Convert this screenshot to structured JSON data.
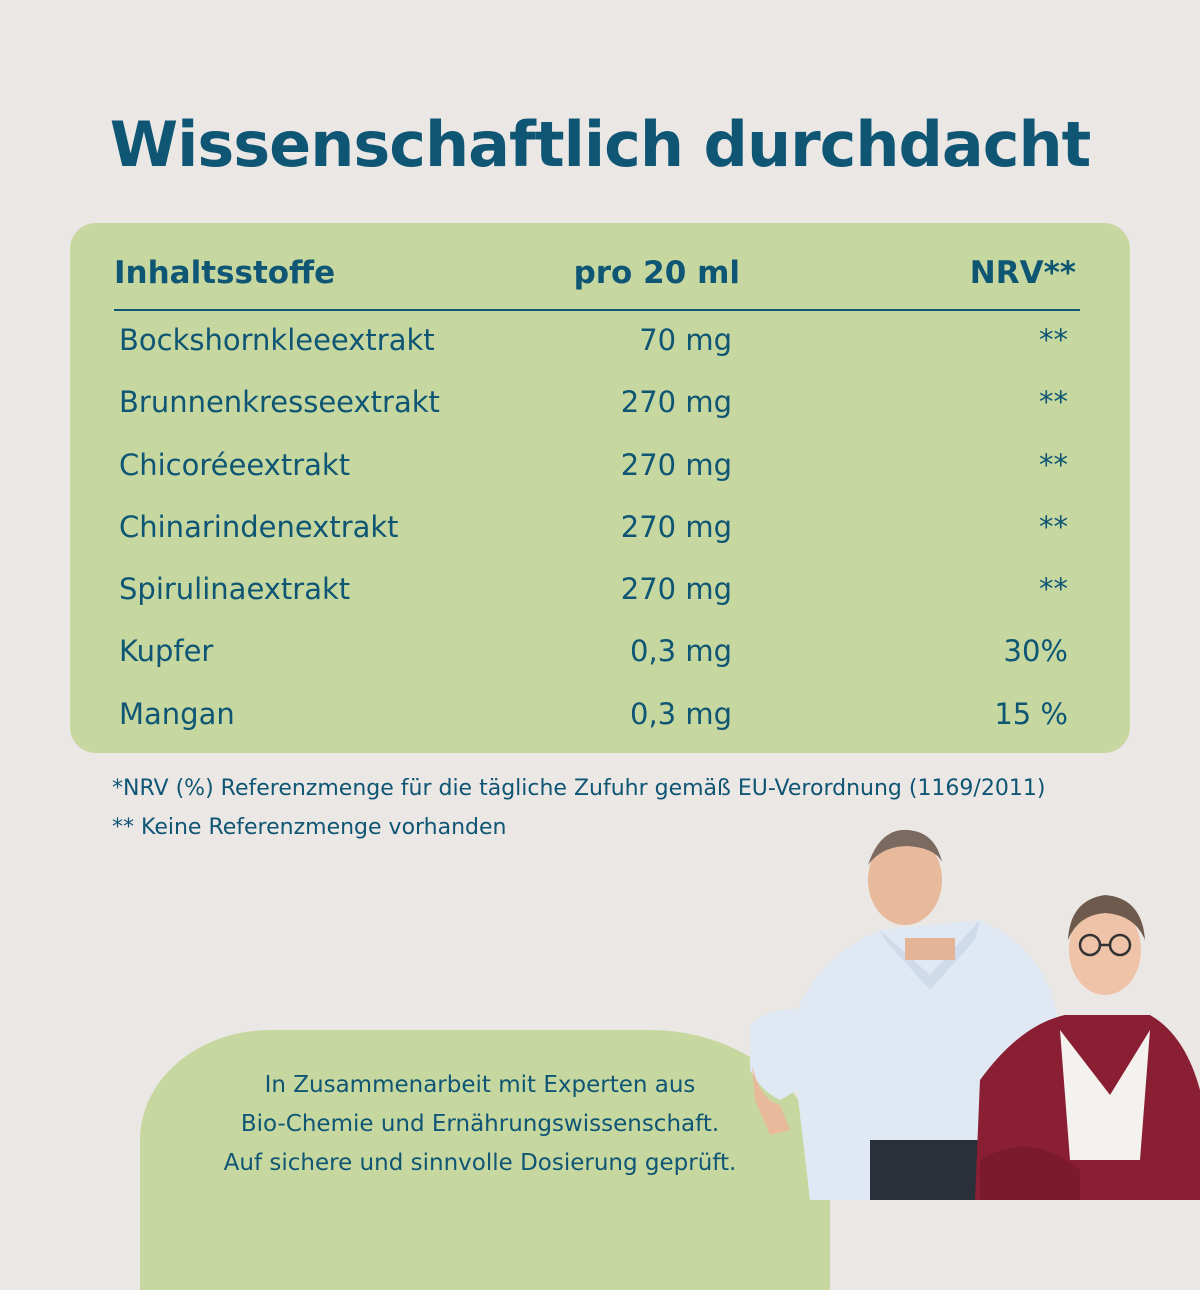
{
  "title": "Wissenschaftlich durchdacht",
  "table": {
    "headers": {
      "name": "Inhaltsstoffe",
      "amount": "pro 20 ml",
      "nrv": "NRV**"
    },
    "rows": [
      {
        "name": "Bockshornkleeextrakt",
        "amount": "70 mg",
        "nrv": "**"
      },
      {
        "name": "Brunnenkresseextrakt",
        "amount": "270 mg",
        "nrv": "**"
      },
      {
        "name": "Chicoréeextrakt",
        "amount": "270 mg",
        "nrv": "**"
      },
      {
        "name": "Chinarindenextrakt",
        "amount": "270 mg",
        "nrv": "**"
      },
      {
        "name": "Spirulinaextrakt",
        "amount": "270 mg",
        "nrv": "**"
      },
      {
        "name": "Kupfer",
        "amount": "0,3 mg",
        "nrv": "30%"
      },
      {
        "name": "Mangan",
        "amount": "0,3 mg",
        "nrv": "15 %"
      }
    ]
  },
  "footnotes": [
    "*NRV (%) Referenzmenge für die tägliche Zufuhr gemäß EU-Verordnung (1169/2011)",
    "** Keine Referenzmenge vorhanden"
  ],
  "callout": [
    "In Zusammenarbeit mit Experten aus",
    "Bio-Chemie und Ernährungswissenschaft.",
    "Auf sichere und sinnvolle Dosierung geprüft."
  ],
  "colors": {
    "background": "#ebe7e4",
    "accent_green": "#c6d8a0",
    "text_blue": "#0f5574"
  }
}
